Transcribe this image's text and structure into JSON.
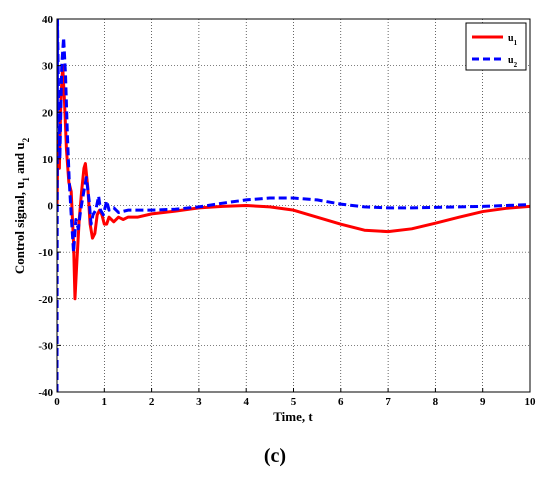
{
  "chart_data": {
    "type": "line",
    "title": "",
    "xlabel": "Time, t",
    "ylabel_parts": [
      "Control signal, u",
      "1",
      " and u",
      "2"
    ],
    "xlim": [
      0,
      10
    ],
    "ylim": [
      -40,
      40
    ],
    "x_ticks": [
      0,
      1,
      2,
      3,
      4,
      5,
      6,
      7,
      8,
      9,
      10
    ],
    "y_ticks": [
      -40,
      -30,
      -20,
      -10,
      0,
      10,
      20,
      30,
      40
    ],
    "grid": true,
    "legend_position": "top-right",
    "series": [
      {
        "name": "u",
        "name_sub": "1",
        "color": "#ff0000",
        "dash": "solid",
        "points": [
          [
            0,
            0
          ],
          [
            0.02,
            14
          ],
          [
            0.05,
            8
          ],
          [
            0.08,
            22
          ],
          [
            0.12,
            30
          ],
          [
            0.16,
            22
          ],
          [
            0.2,
            12
          ],
          [
            0.25,
            5
          ],
          [
            0.3,
            3
          ],
          [
            0.35,
            -8
          ],
          [
            0.38,
            -20
          ],
          [
            0.42,
            -12
          ],
          [
            0.47,
            -3
          ],
          [
            0.52,
            3
          ],
          [
            0.57,
            8
          ],
          [
            0.6,
            9
          ],
          [
            0.65,
            4
          ],
          [
            0.7,
            -4
          ],
          [
            0.75,
            -7
          ],
          [
            0.8,
            -6
          ],
          [
            0.85,
            -2
          ],
          [
            0.9,
            -1
          ],
          [
            0.95,
            -2
          ],
          [
            1.0,
            -4
          ],
          [
            1.05,
            -4
          ],
          [
            1.1,
            -2.5
          ],
          [
            1.2,
            -3.5
          ],
          [
            1.3,
            -2.5
          ],
          [
            1.4,
            -3
          ],
          [
            1.5,
            -2.5
          ],
          [
            1.7,
            -2.5
          ],
          [
            2,
            -1.8
          ],
          [
            2.5,
            -1.2
          ],
          [
            3,
            -0.5
          ],
          [
            3.5,
            -0.2
          ],
          [
            4,
            0
          ],
          [
            4.5,
            -0.3
          ],
          [
            5,
            -1
          ],
          [
            5.5,
            -2.5
          ],
          [
            6,
            -4
          ],
          [
            6.5,
            -5.3
          ],
          [
            7,
            -5.6
          ],
          [
            7.5,
            -5
          ],
          [
            8,
            -3.8
          ],
          [
            8.5,
            -2.5
          ],
          [
            9,
            -1.3
          ],
          [
            9.5,
            -0.6
          ],
          [
            10,
            -0.2
          ]
        ]
      },
      {
        "name": "u",
        "name_sub": "2",
        "color": "#0000ff",
        "dash": "dashed",
        "points": [
          [
            0,
            -40
          ],
          [
            0.01,
            40
          ],
          [
            0.03,
            25
          ],
          [
            0.06,
            10
          ],
          [
            0.1,
            30
          ],
          [
            0.14,
            36
          ],
          [
            0.18,
            28
          ],
          [
            0.22,
            15
          ],
          [
            0.26,
            5
          ],
          [
            0.3,
            -2
          ],
          [
            0.35,
            -10
          ],
          [
            0.4,
            -3
          ],
          [
            0.45,
            -5
          ],
          [
            0.5,
            -1
          ],
          [
            0.55,
            2
          ],
          [
            0.62,
            6
          ],
          [
            0.68,
            1
          ],
          [
            0.72,
            -4
          ],
          [
            0.76,
            -2
          ],
          [
            0.82,
            -1
          ],
          [
            0.88,
            2
          ],
          [
            0.92,
            -1
          ],
          [
            0.98,
            -2
          ],
          [
            1.05,
            1
          ],
          [
            1.1,
            -1
          ],
          [
            1.2,
            -0.5
          ],
          [
            1.3,
            -1.5
          ],
          [
            1.5,
            -1
          ],
          [
            2,
            -1
          ],
          [
            2.5,
            -0.8
          ],
          [
            3,
            -0.3
          ],
          [
            3.5,
            0.5
          ],
          [
            4,
            1.2
          ],
          [
            4.5,
            1.6
          ],
          [
            5,
            1.6
          ],
          [
            5.5,
            1.2
          ],
          [
            6,
            0.3
          ],
          [
            6.5,
            -0.3
          ],
          [
            7,
            -0.5
          ],
          [
            7.5,
            -0.5
          ],
          [
            8,
            -0.4
          ],
          [
            8.5,
            -0.3
          ],
          [
            9,
            -0.2
          ],
          [
            9.5,
            0
          ],
          [
            10,
            0.2
          ]
        ]
      }
    ]
  },
  "caption": "(c)"
}
